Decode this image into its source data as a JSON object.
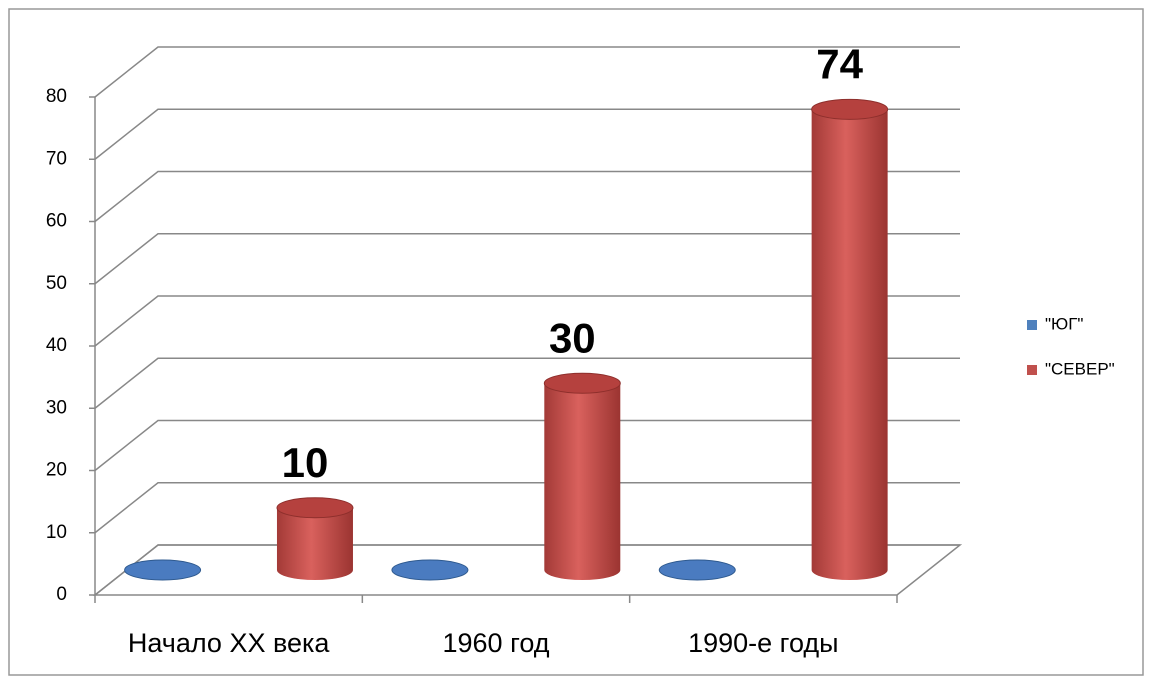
{
  "chart_data": {
    "type": "cylinder3d",
    "categories": [
      "Начало XX века",
      "1960 год",
      "1990-е годы"
    ],
    "series": [
      {
        "name": "\"ЮГ\"",
        "color": "#4f81bd",
        "values": [
          0,
          0,
          0
        ]
      },
      {
        "name": "\"СЕВЕР\"",
        "color": "#c0504d",
        "values": [
          10,
          30,
          74
        ]
      }
    ],
    "ylim": [
      0,
      80
    ],
    "yticks": [
      0,
      10,
      20,
      30,
      40,
      50,
      60,
      70,
      80
    ],
    "grid": true,
    "legend": "right"
  }
}
